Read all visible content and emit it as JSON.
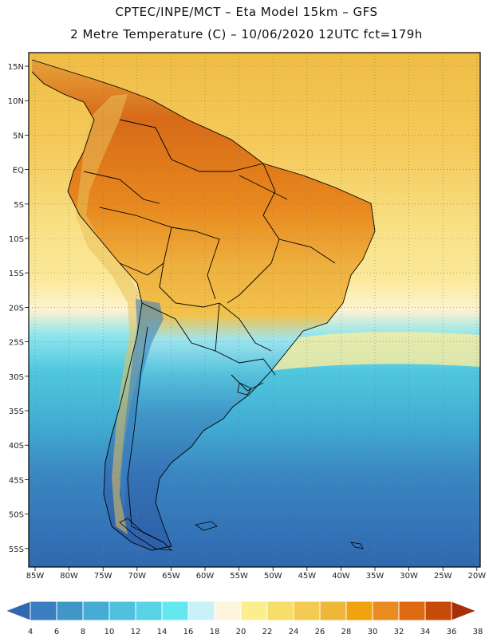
{
  "header": {
    "line1": "CPTEC/INPE/MCT –  Eta Model 15km – GFS",
    "line2": "2 Metre Temperature (C) – 10/06/2020 12UTC fct=179h"
  },
  "latitude_labels": [
    "15N",
    "10N",
    "5N",
    "EQ",
    "5S",
    "10S",
    "15S",
    "20S",
    "25S",
    "30S",
    "35S",
    "40S",
    "45S",
    "50S",
    "55S"
  ],
  "longitude_labels": [
    "85W",
    "80W",
    "75W",
    "70W",
    "65W",
    "60W",
    "55W",
    "50W",
    "45W",
    "40W",
    "35W",
    "30W",
    "25W",
    "20W"
  ],
  "colorbar": {
    "tick_labels": [
      "4",
      "6",
      "8",
      "10",
      "12",
      "14",
      "16",
      "18",
      "20",
      "22",
      "24",
      "26",
      "28",
      "30",
      "32",
      "34",
      "36",
      "38"
    ],
    "colors": [
      "#2f69b0",
      "#3a7ec0",
      "#3f97c8",
      "#46acd6",
      "#4fc1dc",
      "#58d3e5",
      "#63e8ef",
      "#c8f2f8",
      "#fdf6dc",
      "#fbee8e",
      "#f7dd6a",
      "#f3ca52",
      "#efb73a",
      "#f1a30f",
      "#ea8b22",
      "#de6a12",
      "#c84a08",
      "#a6300a"
    ]
  }
}
